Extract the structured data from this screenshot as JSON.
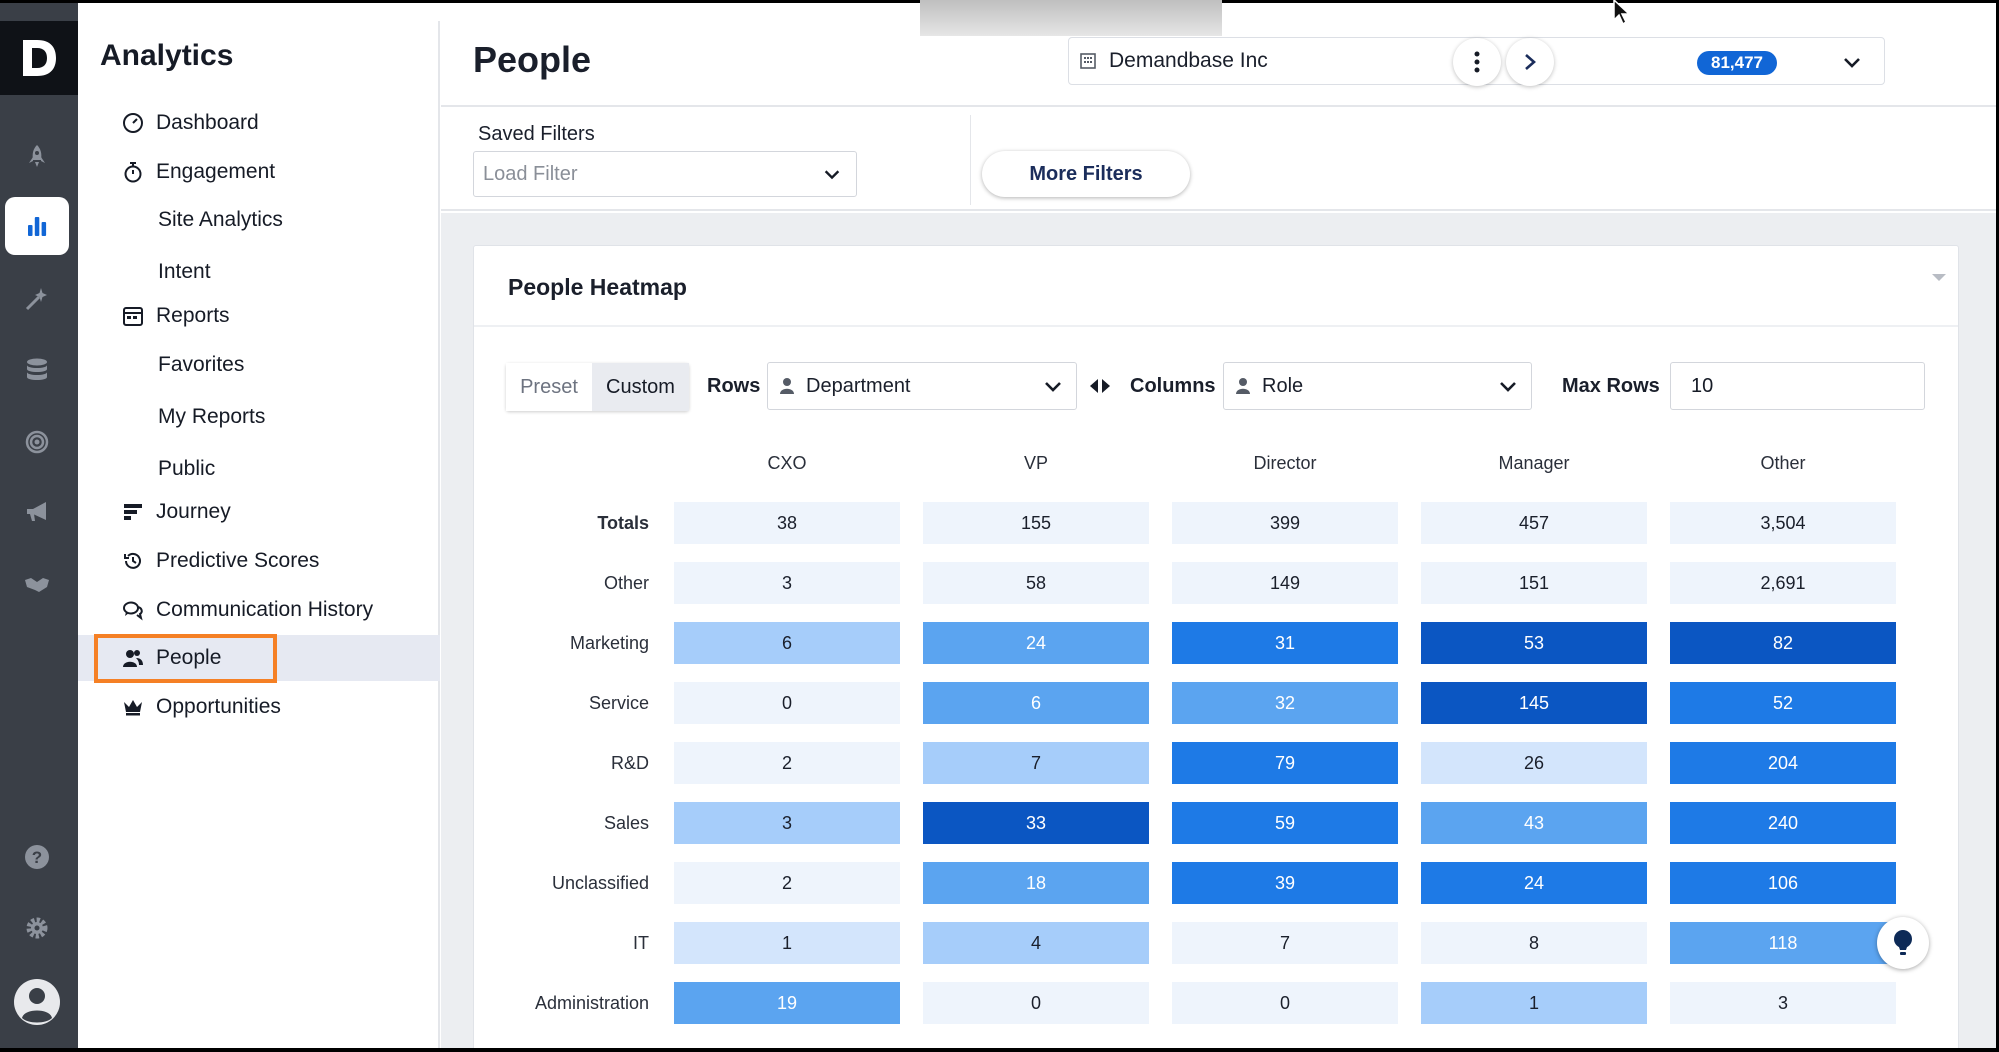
{
  "app": {
    "title": "Analytics",
    "logo_letter": "D"
  },
  "rail": {
    "items": [
      {
        "icon": "rocket-icon"
      },
      {
        "icon": "bar-chart-icon",
        "active": true
      },
      {
        "icon": "magic-wand-icon"
      },
      {
        "icon": "database-icon"
      },
      {
        "icon": "target-icon"
      },
      {
        "icon": "megaphone-icon"
      },
      {
        "icon": "handshake-icon"
      }
    ],
    "bottom": [
      {
        "icon": "help-icon"
      },
      {
        "icon": "gear-icon"
      },
      {
        "icon": "avatar-icon"
      }
    ]
  },
  "nav": {
    "dashboard": "Dashboard",
    "engagement": "Engagement",
    "site_analytics": "Site Analytics",
    "intent": "Intent",
    "reports": "Reports",
    "favorites": "Favorites",
    "my_reports": "My Reports",
    "public": "Public",
    "journey": "Journey",
    "predictive_scores": "Predictive Scores",
    "communication_history": "Communication History",
    "people": "People",
    "opportunities": "Opportunities"
  },
  "header": {
    "title": "People",
    "account": {
      "name": "Demandbase Inc",
      "count": "81,477"
    }
  },
  "filters": {
    "saved_label": "Saved Filters",
    "load_placeholder": "Load Filter",
    "more_filters": "More Filters"
  },
  "heatmap": {
    "title": "People Heatmap",
    "preset": "Preset",
    "custom": "Custom",
    "rows_label": "Rows",
    "rows_value": "Department",
    "columns_label": "Columns",
    "columns_value": "Role",
    "max_rows_label": "Max Rows",
    "max_rows_value": "10"
  },
  "colors": {
    "level0": "#eef4fc",
    "level1": "#d3e5fc",
    "level2": "#a6cdfa",
    "level3": "#5ba4f0",
    "level4": "#1e7ae6",
    "level5": "#0b56c2",
    "highlight": "#f58025",
    "badge": "#1166d6"
  },
  "chart_data": {
    "type": "heatmap",
    "title": "People Heatmap",
    "columns": [
      "CXO",
      "VP",
      "Director",
      "Manager",
      "Other"
    ],
    "rows": [
      {
        "label": "Totals",
        "bold": true,
        "values": [
          "38",
          "155",
          "399",
          "457",
          "3,504"
        ],
        "levels": [
          0,
          0,
          0,
          0,
          0
        ]
      },
      {
        "label": "Other",
        "values": [
          "3",
          "58",
          "149",
          "151",
          "2,691"
        ],
        "levels": [
          0,
          0,
          0,
          0,
          0
        ]
      },
      {
        "label": "Marketing",
        "values": [
          "6",
          "24",
          "31",
          "53",
          "82"
        ],
        "levels": [
          2,
          3,
          4,
          5,
          5
        ]
      },
      {
        "label": "Service",
        "values": [
          "0",
          "6",
          "32",
          "145",
          "52"
        ],
        "levels": [
          0,
          3,
          3,
          5,
          4
        ]
      },
      {
        "label": "R&D",
        "values": [
          "2",
          "7",
          "79",
          "26",
          "204"
        ],
        "levels": [
          0,
          2,
          4,
          1,
          4
        ]
      },
      {
        "label": "Sales",
        "values": [
          "3",
          "33",
          "59",
          "43",
          "240"
        ],
        "levels": [
          2,
          5,
          4,
          3,
          4
        ]
      },
      {
        "label": "Unclassified",
        "values": [
          "2",
          "18",
          "39",
          "24",
          "106"
        ],
        "levels": [
          0,
          3,
          4,
          4,
          4
        ]
      },
      {
        "label": "IT",
        "values": [
          "1",
          "4",
          "7",
          "8",
          "118"
        ],
        "levels": [
          1,
          2,
          0,
          0,
          3
        ]
      },
      {
        "label": "Administration",
        "values": [
          "19",
          "0",
          "0",
          "1",
          "3"
        ],
        "levels": [
          3,
          0,
          0,
          2,
          0
        ]
      }
    ]
  }
}
